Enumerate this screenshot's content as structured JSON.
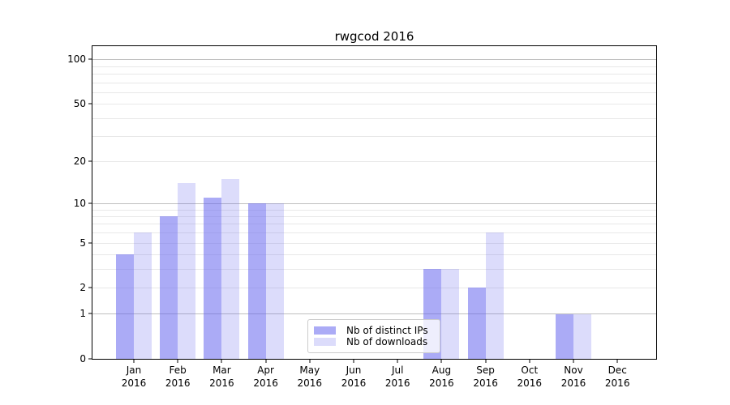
{
  "chart_data": {
    "type": "bar",
    "title": "rwgcod 2016",
    "categories": [
      "Jan 2016",
      "Feb 2016",
      "Mar 2016",
      "Apr 2016",
      "May 2016",
      "Jun 2016",
      "Jul 2016",
      "Aug 2016",
      "Sep 2016",
      "Oct 2016",
      "Nov 2016",
      "Dec 2016"
    ],
    "series": [
      {
        "name": "Nb of distinct IPs",
        "color": "#6666ee",
        "alpha": 0.55,
        "values": [
          4,
          8,
          11,
          10,
          0,
          0,
          0,
          3,
          2,
          0,
          1,
          0
        ]
      },
      {
        "name": "Nb of downloads",
        "color": "#6666ee",
        "alpha": 0.23,
        "values": [
          6,
          14,
          15,
          10,
          0,
          0,
          0,
          3,
          6,
          0,
          1,
          0
        ]
      }
    ],
    "xlabel": "",
    "ylabel": "",
    "y_scale": "log1p",
    "ylim": [
      0,
      123
    ],
    "y_tick_values": [
      0,
      1,
      2,
      5,
      10,
      20,
      50,
      100
    ],
    "y_tick_labels": [
      "0",
      "1",
      "2",
      "5",
      "10",
      "20",
      "50",
      "100"
    ],
    "grid": {
      "on": true,
      "major_values": [
        1,
        10,
        100
      ],
      "minor_values": [
        2,
        3,
        4,
        5,
        6,
        7,
        8,
        9,
        20,
        30,
        40,
        50,
        60,
        70,
        80,
        90
      ],
      "major_color": "#bfbfbf",
      "minor_color": "#e8e8e8"
    },
    "legend_position": "lower center"
  },
  "legend": {
    "items": [
      {
        "label": "Nb of distinct IPs"
      },
      {
        "label": "Nb of downloads"
      }
    ]
  },
  "axes": {
    "spine_color": "#000000",
    "text_color": "#000000"
  }
}
